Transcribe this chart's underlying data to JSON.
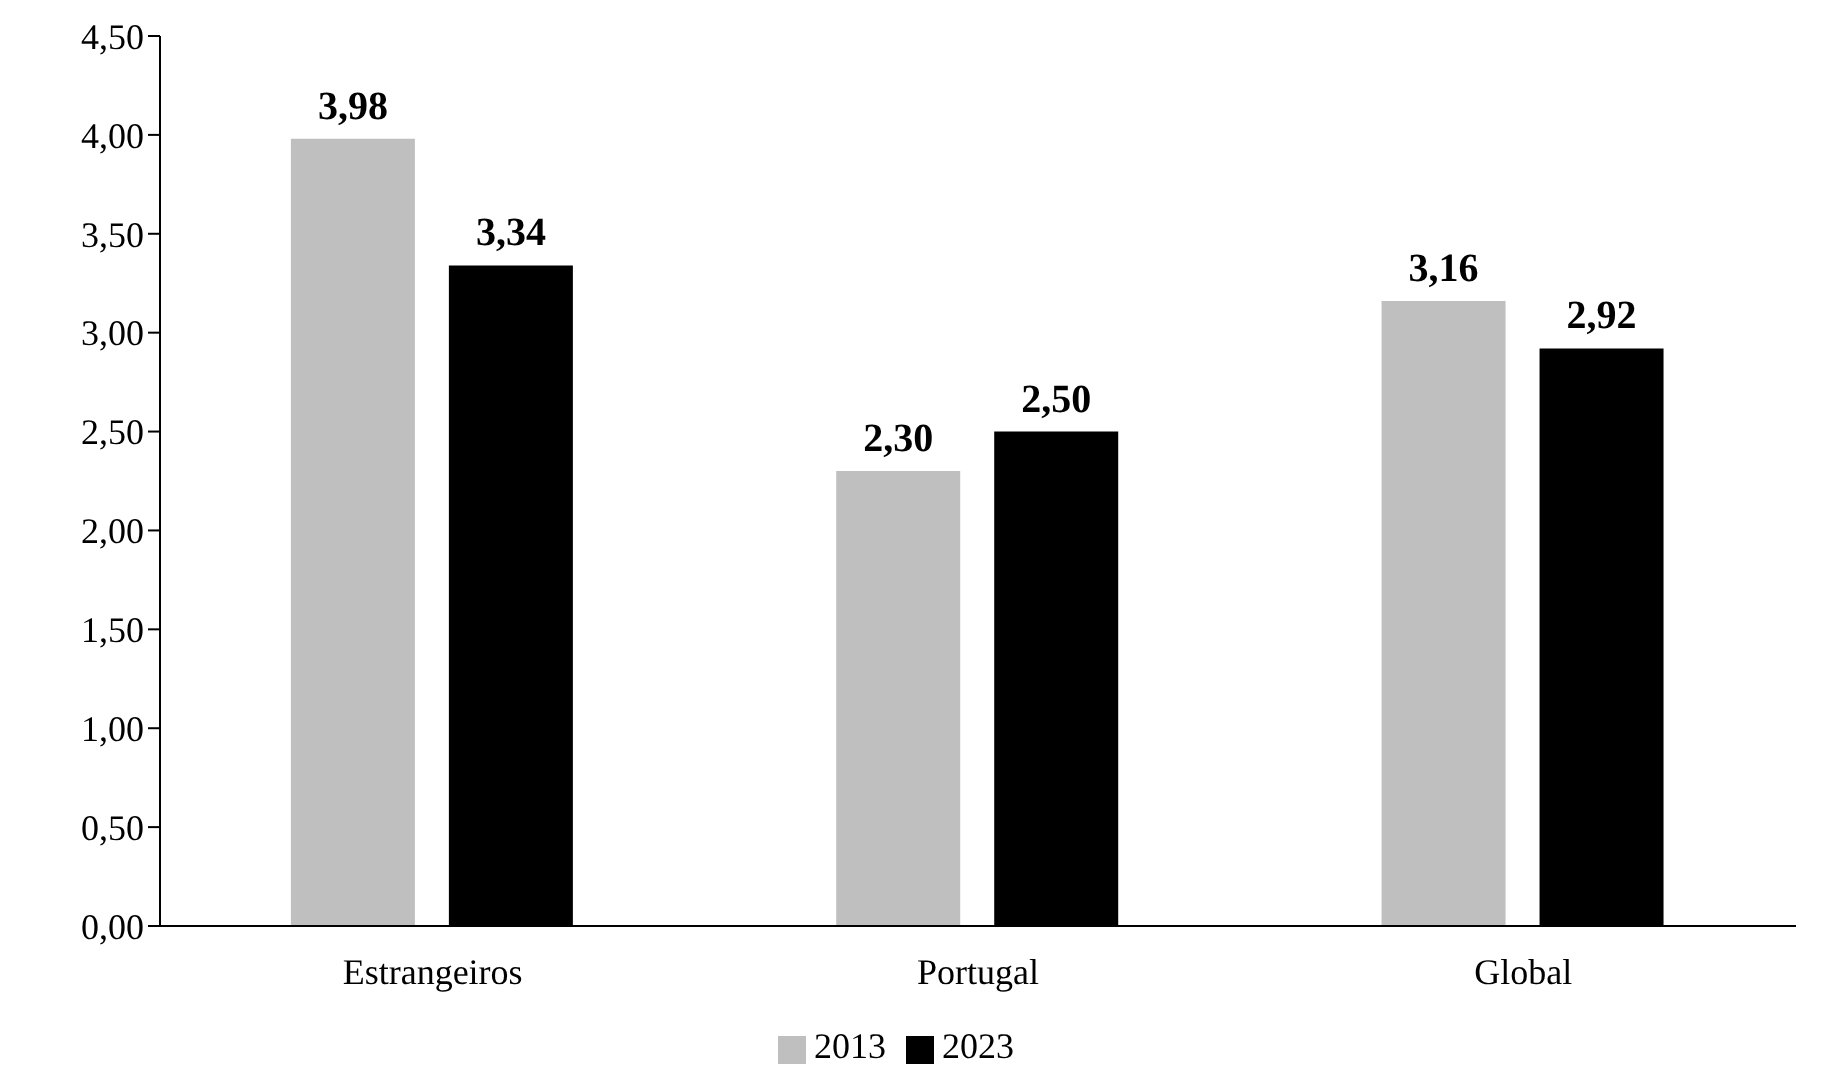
{
  "chart_data": {
    "type": "bar",
    "categories": [
      "Estrangeiros",
      "Portugal",
      "Global"
    ],
    "series": [
      {
        "name": "2013",
        "color": "#bfbfbf",
        "values": [
          3.98,
          2.3,
          3.16
        ],
        "value_labels": [
          "3,98",
          "2,30",
          "3,16"
        ]
      },
      {
        "name": "2023",
        "color": "#000000",
        "values": [
          3.34,
          2.5,
          2.92
        ],
        "value_labels": [
          "3,34",
          "2,50",
          "2,92"
        ]
      }
    ],
    "ylim": [
      0,
      4.5
    ],
    "yticks": [
      {
        "value": 0,
        "label": "0,00"
      },
      {
        "value": 0.5,
        "label": "0,50"
      },
      {
        "value": 1,
        "label": "1,00"
      },
      {
        "value": 1.5,
        "label": "1,50"
      },
      {
        "value": 2,
        "label": "2,00"
      },
      {
        "value": 2.5,
        "label": "2,50"
      },
      {
        "value": 3,
        "label": "3,00"
      },
      {
        "value": 3.5,
        "label": "3,50"
      },
      {
        "value": 4,
        "label": "4,00"
      },
      {
        "value": 4.5,
        "label": "4,50"
      }
    ],
    "grid": false,
    "legend": "bottom"
  }
}
